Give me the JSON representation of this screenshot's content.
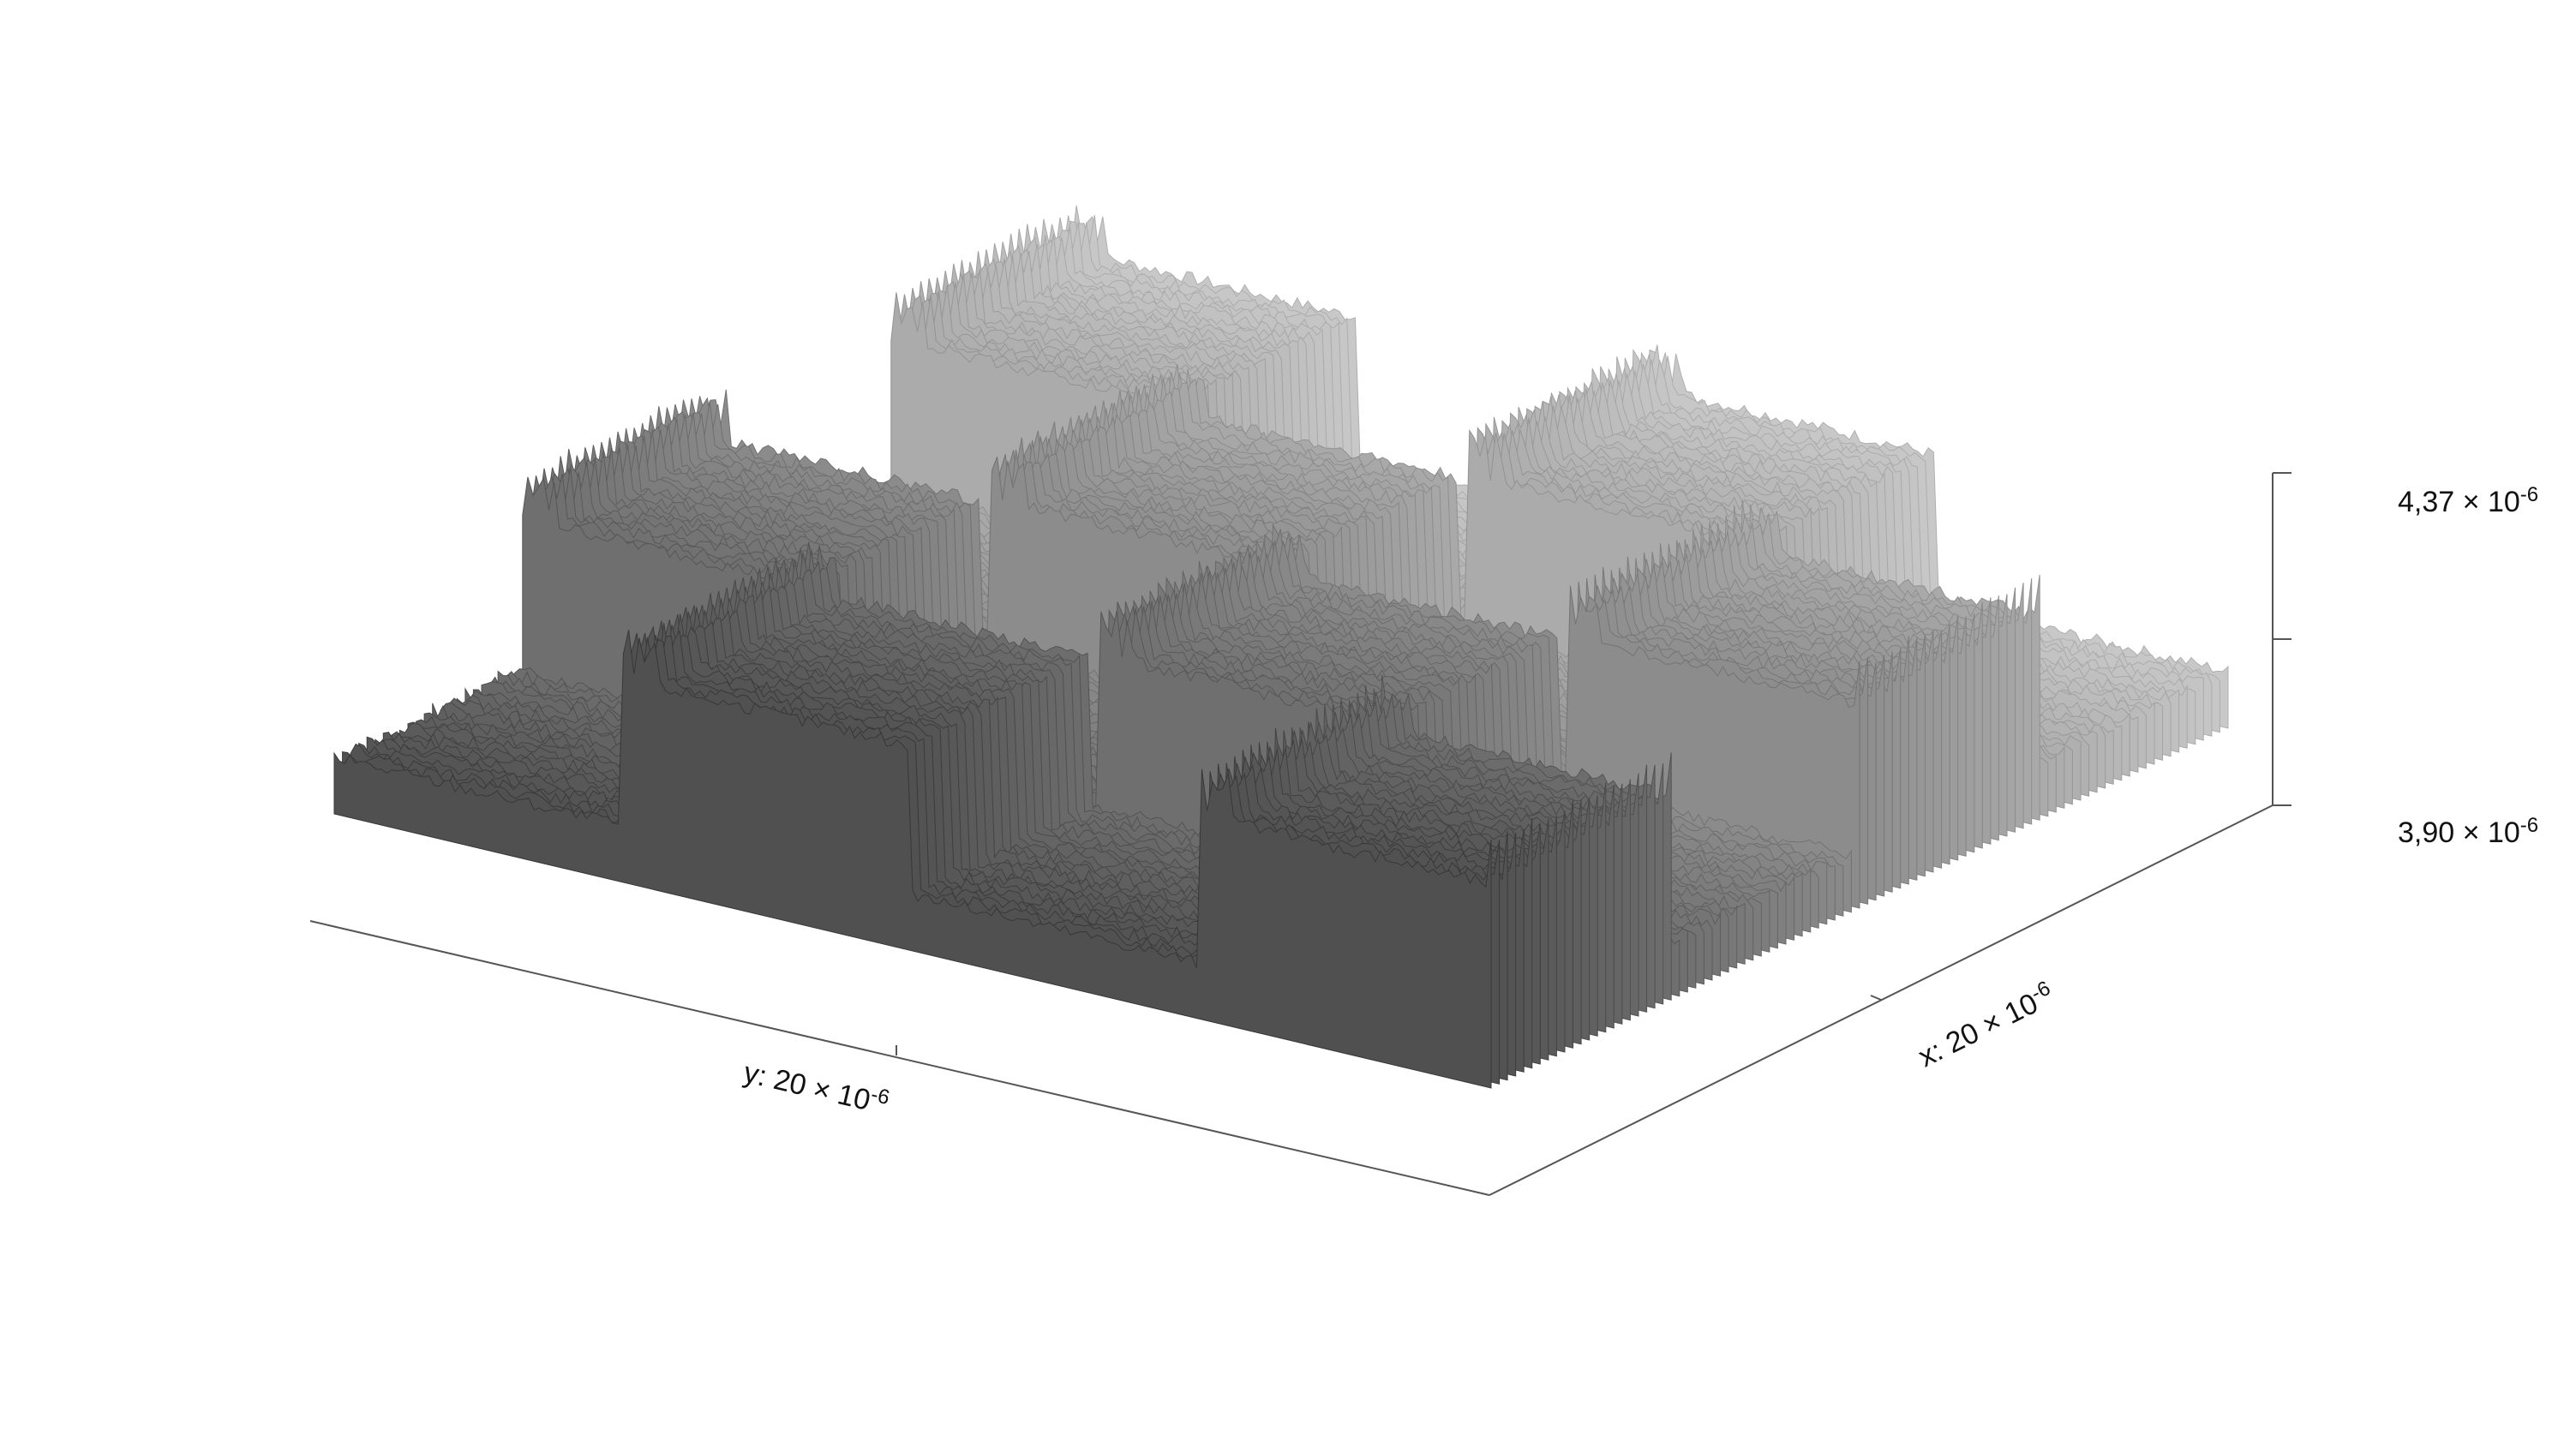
{
  "chart_data": {
    "type": "surface",
    "title": "",
    "x_axis": {
      "label_prefix": "x: ",
      "value": "20",
      "unit": "10",
      "exponent": "-6",
      "range": [
        0,
        2e-05
      ]
    },
    "y_axis": {
      "label_prefix": "y: ",
      "value": "20",
      "unit": "10",
      "exponent": "-6",
      "range": [
        0,
        2e-05
      ]
    },
    "z_axis": {
      "range": [
        3.9e-06,
        4.37e-06
      ],
      "ticks": [
        {
          "mantissa": "4,37",
          "unit": "10",
          "exponent": "-6",
          "value": 4.37e-06
        },
        {
          "mantissa": "3,90",
          "unit": "10",
          "exponent": "-6",
          "value": 3.9e-06
        }
      ]
    },
    "surface": {
      "description_free": true,
      "colormap": "gray",
      "pattern": "checkerboard of raised and lowered square pads",
      "grid_cells": 4,
      "low_level": 3.98e-06,
      "high_level": 4.25e-06
    },
    "grid": false,
    "legend": "none"
  }
}
